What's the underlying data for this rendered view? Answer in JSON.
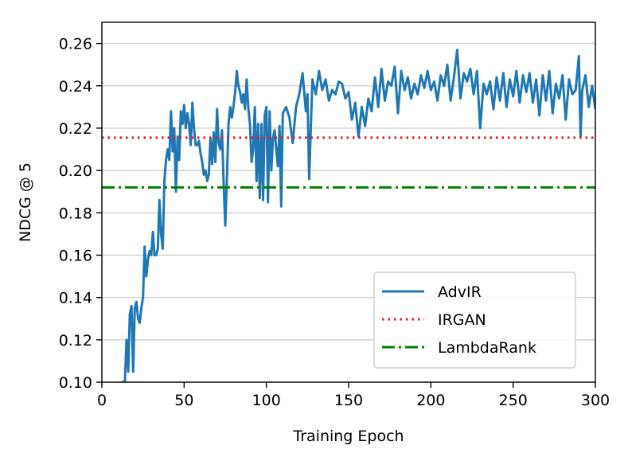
{
  "chart_data": {
    "type": "line",
    "title": "",
    "xlabel": "Training Epoch",
    "ylabel": "NDCG @ 5",
    "xlim": [
      0,
      300
    ],
    "ylim": [
      0.1,
      0.27
    ],
    "xticks": [
      0,
      50,
      100,
      150,
      200,
      250,
      300
    ],
    "xtick_labels": [
      "0",
      "50",
      "100",
      "150",
      "200",
      "250",
      "300"
    ],
    "yticks": [
      0.1,
      0.12,
      0.14,
      0.16,
      0.18,
      0.2,
      0.22,
      0.24,
      0.26
    ],
    "ytick_labels": [
      "0.10",
      "0.12",
      "0.14",
      "0.16",
      "0.18",
      "0.20",
      "0.22",
      "0.24",
      "0.26"
    ],
    "grid": "horizontal",
    "legend_position": "lower-right",
    "series": [
      {
        "name": "AdvIR",
        "style": "solid",
        "color": "#1f77b4",
        "x": [
          12,
          14,
          15,
          16,
          17,
          18,
          19,
          20,
          21,
          22,
          23,
          24,
          25,
          26,
          27,
          28,
          29,
          30,
          31,
          32,
          33,
          34,
          35,
          36,
          37,
          38,
          39,
          40,
          41,
          42,
          43,
          44,
          45,
          46,
          47,
          48,
          49,
          50,
          51,
          52,
          53,
          54,
          55,
          56,
          57,
          58,
          59,
          60,
          61,
          62,
          63,
          64,
          65,
          66,
          67,
          68,
          69,
          70,
          71,
          72,
          73,
          74,
          75,
          76,
          77,
          78,
          79,
          80,
          81,
          82,
          83,
          84,
          85,
          86,
          87,
          88,
          89,
          90,
          91,
          92,
          93,
          94,
          95,
          96,
          97,
          98,
          99,
          100,
          101,
          102,
          103,
          104,
          105,
          106,
          107,
          108,
          109,
          110,
          112,
          114,
          116,
          118,
          120,
          122,
          124,
          125,
          126,
          128,
          130,
          132,
          134,
          136,
          138,
          140,
          142,
          144,
          146,
          148,
          150,
          152,
          154,
          156,
          158,
          160,
          162,
          164,
          166,
          168,
          170,
          172,
          174,
          176,
          178,
          180,
          182,
          184,
          186,
          188,
          190,
          192,
          194,
          196,
          198,
          200,
          202,
          204,
          206,
          208,
          210,
          212,
          214,
          216,
          218,
          220,
          222,
          224,
          226,
          228,
          230,
          232,
          234,
          236,
          238,
          240,
          242,
          244,
          246,
          248,
          250,
          252,
          254,
          256,
          258,
          260,
          262,
          264,
          266,
          268,
          270,
          272,
          274,
          276,
          278,
          280,
          282,
          284,
          286,
          288,
          290,
          291,
          292,
          294,
          296,
          298,
          300
        ],
        "values": [
          0.1,
          0.1,
          0.12,
          0.105,
          0.132,
          0.136,
          0.105,
          0.135,
          0.138,
          0.13,
          0.128,
          0.135,
          0.14,
          0.164,
          0.15,
          0.158,
          0.162,
          0.16,
          0.171,
          0.16,
          0.16,
          0.163,
          0.186,
          0.17,
          0.163,
          0.195,
          0.205,
          0.21,
          0.205,
          0.228,
          0.209,
          0.22,
          0.19,
          0.216,
          0.205,
          0.228,
          0.222,
          0.231,
          0.22,
          0.227,
          0.222,
          0.212,
          0.232,
          0.22,
          0.212,
          0.212,
          0.214,
          0.208,
          0.204,
          0.198,
          0.2,
          0.195,
          0.198,
          0.215,
          0.203,
          0.218,
          0.204,
          0.229,
          0.213,
          0.21,
          0.219,
          0.195,
          0.174,
          0.196,
          0.222,
          0.23,
          0.225,
          0.23,
          0.237,
          0.247,
          0.24,
          0.237,
          0.232,
          0.236,
          0.229,
          0.243,
          0.23,
          0.222,
          0.204,
          0.21,
          0.23,
          0.195,
          0.222,
          0.187,
          0.222,
          0.186,
          0.226,
          0.23,
          0.185,
          0.228,
          0.2,
          0.215,
          0.219,
          0.21,
          0.202,
          0.221,
          0.183,
          0.227,
          0.23,
          0.225,
          0.213,
          0.23,
          0.236,
          0.246,
          0.228,
          0.236,
          0.196,
          0.243,
          0.236,
          0.247,
          0.238,
          0.243,
          0.233,
          0.238,
          0.236,
          0.242,
          0.241,
          0.234,
          0.237,
          0.224,
          0.232,
          0.216,
          0.23,
          0.221,
          0.234,
          0.228,
          0.244,
          0.23,
          0.248,
          0.233,
          0.242,
          0.24,
          0.249,
          0.227,
          0.247,
          0.238,
          0.244,
          0.234,
          0.241,
          0.236,
          0.245,
          0.239,
          0.247,
          0.238,
          0.242,
          0.233,
          0.245,
          0.24,
          0.25,
          0.233,
          0.244,
          0.257,
          0.234,
          0.246,
          0.242,
          0.248,
          0.236,
          0.247,
          0.22,
          0.241,
          0.236,
          0.242,
          0.229,
          0.244,
          0.233,
          0.246,
          0.23,
          0.243,
          0.235,
          0.247,
          0.232,
          0.245,
          0.237,
          0.246,
          0.232,
          0.243,
          0.226,
          0.245,
          0.233,
          0.247,
          0.227,
          0.241,
          0.234,
          0.245,
          0.224,
          0.243,
          0.236,
          0.238,
          0.254,
          0.216,
          0.238,
          0.245,
          0.23,
          0.24,
          0.229
        ]
      },
      {
        "name": "IRGAN",
        "style": "dotted",
        "color": "#e31a1c",
        "constant": 0.2155
      },
      {
        "name": "LambdaRank",
        "style": "dashdot",
        "color": "#008000",
        "constant": 0.192
      }
    ]
  }
}
